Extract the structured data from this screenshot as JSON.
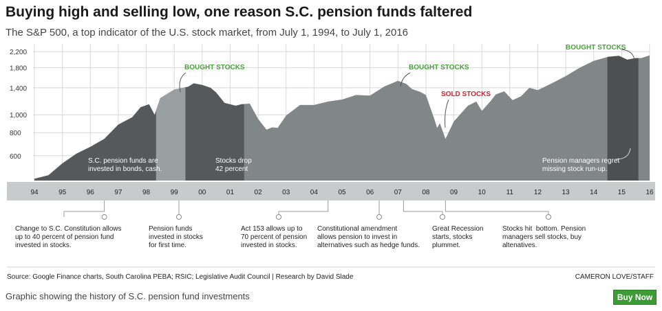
{
  "title": "Buying high and selling low, one reason S.C. pension funds faltered",
  "subtitle": "The S&P 500, a top indicator of the U.S. stock market, from July 1, 1994, to July 1, 2016",
  "chart_data": {
    "type": "area",
    "title": "Buying high and selling low, one reason S.C. pension funds faltered",
    "subtitle": "The S&P 500, a top indicator of the U.S. stock market, from July 1, 1994, to July 1, 2016",
    "xlabel": "",
    "ylabel": "",
    "y_scale": "log",
    "ylim": [
      440,
      2300
    ],
    "y_ticks": [
      600,
      800,
      1000,
      1400,
      1800,
      2200
    ],
    "y_tick_labels": [
      "600",
      "800",
      "1,000",
      "1,400",
      "1,800",
      "2,200"
    ],
    "x_tick_labels": [
      "94",
      "95",
      "96",
      "97",
      "98",
      "99",
      "00",
      "01",
      "02",
      "03",
      "04",
      "05",
      "06",
      "07",
      "08",
      "09",
      "10",
      "11",
      "12",
      "13",
      "14",
      "15",
      "16"
    ],
    "grid": true,
    "colors": {
      "area_dark": "#55595b",
      "area_light": "#818687",
      "highlight_band": "#9aa0a1",
      "axis_band": "#c7cbcc",
      "bought": "#49a33b",
      "sold": "#d8202f",
      "grid": "#d8d8d8"
    },
    "series": [
      {
        "x": [
          "1994.5",
          "1995.0",
          "1995.5",
          "1996.0",
          "1996.5",
          "1997.0",
          "1997.5",
          "1998.0",
          "1998.3",
          "1998.6",
          "1998.8",
          "1999.0",
          "1999.5",
          "2000.0",
          "2000.2",
          "2000.5",
          "2000.8",
          "2001.0",
          "2001.3",
          "2001.7",
          "2001.9",
          "2002.2",
          "2002.5",
          "2002.8",
          "2003.0",
          "2003.2",
          "2003.5",
          "2004.0",
          "2004.5",
          "2005.0",
          "2005.5",
          "2006.0",
          "2006.5",
          "2007.0",
          "2007.5",
          "2007.8",
          "2008.0",
          "2008.3",
          "2008.5",
          "2008.8",
          "2008.9",
          "2009.0",
          "2009.2",
          "2009.5",
          "2010.0",
          "2010.3",
          "2010.5",
          "2010.8",
          "2011.0",
          "2011.3",
          "2011.6",
          "2011.9",
          "2012.2",
          "2012.5",
          "2013.0",
          "2013.5",
          "2014.0",
          "2014.5",
          "2015.0",
          "2015.4",
          "2015.7",
          "2016.0",
          "2016.2",
          "2016.5"
        ],
        "values": [
          450,
          470,
          545,
          615,
          670,
          740,
          885,
          970,
          1100,
          1140,
          1000,
          1230,
          1370,
          1420,
          1480,
          1450,
          1400,
          1320,
          1160,
          1120,
          1140,
          1150,
          950,
          830,
          855,
          850,
          990,
          1130,
          1130,
          1180,
          1210,
          1280,
          1270,
          1420,
          1530,
          1470,
          1380,
          1330,
          1280,
          950,
          850,
          900,
          740,
          920,
          1120,
          1180,
          1050,
          1180,
          1290,
          1340,
          1200,
          1260,
          1400,
          1360,
          1480,
          1620,
          1800,
          1960,
          2060,
          2090,
          1990,
          2030,
          2030,
          2100
        ]
      }
    ],
    "bands": [
      {
        "start": "1998.85",
        "end": "1999.9",
        "color": "light"
      },
      {
        "start": "2014.99",
        "end": "2016.1",
        "color": "dark"
      }
    ],
    "labels": {
      "bought_1": "BOUGHT STOCKS",
      "bought_2": "BOUGHT STOCKS",
      "bought_3": "BOUGHT STOCKS",
      "sold": "SOLD STOCKS",
      "in_chart_1": [
        "S.C. pension funds are",
        "invested in bonds, cash."
      ],
      "in_chart_2": [
        "Stocks drop",
        "42 percent"
      ],
      "in_chart_3": [
        "Pension managers regret",
        "missing stock run-up."
      ]
    }
  },
  "annotations": [
    {
      "text": "Change to S.C. Constitution allows\nup to 40 percent of pension fund\ninvested in stocks."
    },
    {
      "text": "Pension funds\ninvested in stocks\nfor first time."
    },
    {
      "text": "Act 153 allows up to\n70 percent of pension\ninvested in stocks."
    },
    {
      "text": "Constitutional amendment\nallows pension to invest in\nalternatives such as hedge funds."
    },
    {
      "text": "Great Recession\nstarts, stocks\nplummet."
    },
    {
      "text": "Stocks hit  bottom. Pension\nmanagers sell stocks, buy\naltenatives."
    }
  ],
  "source": "Source: Google Finance charts, South Carolina PEBA; RSIC; Legislative Audit Council | Research by David Slade",
  "credit": "CAMERON LOVE/STAFF",
  "caption": "Graphic showing the history of S.C. pension fund investments",
  "buy_button": "Buy Now"
}
